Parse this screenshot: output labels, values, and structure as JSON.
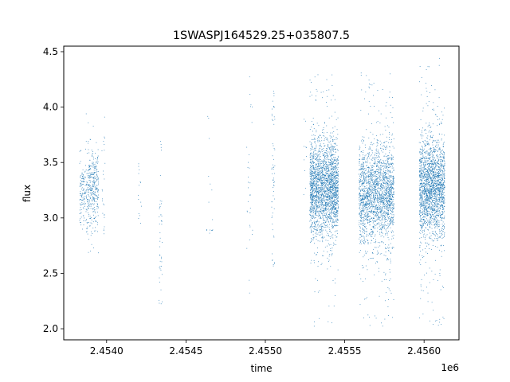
{
  "chart_data": {
    "type": "scatter",
    "title": "1SWASPJ164529.25+035807.5",
    "xlabel": "time",
    "ylabel": "flux",
    "x_offset_label": "1e6",
    "xlim": [
      2.45373,
      2.45622
    ],
    "ylim": [
      1.9,
      4.55
    ],
    "xticks": [
      2.454,
      2.4545,
      2.455,
      2.4555,
      2.456
    ],
    "xtick_labels": [
      "2.4540",
      "2.4545",
      "2.4550",
      "2.4555",
      "2.4560"
    ],
    "yticks": [
      2.0,
      2.5,
      3.0,
      3.5,
      4.0,
      4.5
    ],
    "ytick_labels": [
      "2.0",
      "2.5",
      "3.0",
      "3.5",
      "4.0",
      "4.5"
    ],
    "grid": false,
    "marker_color": "#1f77b4",
    "clusters": [
      {
        "x_center": 2.45385,
        "x_spread": 2e-05,
        "y_center": 3.25,
        "y_spread": 0.15,
        "y_min": 2.85,
        "y_max": 3.65,
        "count": 120
      },
      {
        "x_center": 2.45391,
        "x_spread": 4e-05,
        "y_center": 3.25,
        "y_spread": 0.18,
        "y_min": 2.6,
        "y_max": 3.98,
        "count": 380
      },
      {
        "x_center": 2.45398,
        "x_spread": 1e-05,
        "y_center": 3.4,
        "y_spread": 0.35,
        "y_min": 2.85,
        "y_max": 3.95,
        "count": 25
      },
      {
        "x_center": 2.45421,
        "x_spread": 1e-05,
        "y_center": 3.2,
        "y_spread": 0.2,
        "y_min": 2.85,
        "y_max": 3.5,
        "count": 15
      },
      {
        "x_center": 2.45434,
        "x_spread": 1e-05,
        "y_center": 2.8,
        "y_spread": 0.4,
        "y_min": 2.22,
        "y_max": 3.7,
        "count": 45
      },
      {
        "x_center": 2.45465,
        "x_spread": 2e-05,
        "y_center": 3.2,
        "y_spread": 0.35,
        "y_min": 2.85,
        "y_max": 3.95,
        "count": 15
      },
      {
        "x_center": 2.4549,
        "x_spread": 2e-05,
        "y_center": 3.35,
        "y_spread": 0.45,
        "y_min": 2.15,
        "y_max": 4.45,
        "count": 30
      },
      {
        "x_center": 2.45505,
        "x_spread": 1e-05,
        "y_center": 3.35,
        "y_spread": 0.4,
        "y_min": 2.55,
        "y_max": 4.15,
        "count": 60
      },
      {
        "x_center": 2.45525,
        "x_spread": 1e-05,
        "y_center": 3.5,
        "y_spread": 0.25,
        "y_min": 3.2,
        "y_max": 3.9,
        "count": 10
      },
      {
        "x_center": 2.45537,
        "x_spread": 9e-05,
        "y_center": 3.27,
        "y_spread": 0.22,
        "y_min": 2.02,
        "y_max": 4.32,
        "count": 2400
      },
      {
        "x_center": 2.4557,
        "x_spread": 0.00011,
        "y_center": 3.22,
        "y_spread": 0.22,
        "y_min": 2.02,
        "y_max": 4.33,
        "count": 2200
      },
      {
        "x_center": 2.45605,
        "x_spread": 8e-05,
        "y_center": 3.28,
        "y_spread": 0.22,
        "y_min": 2.02,
        "y_max": 4.45,
        "count": 2100
      }
    ]
  }
}
